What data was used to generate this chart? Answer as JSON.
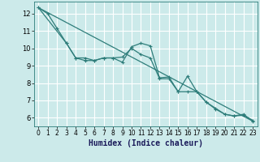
{
  "xlabel": "Humidex (Indice chaleur)",
  "background_color": "#cceaea",
  "grid_color": "#ffffff",
  "line_color": "#2e7d7a",
  "xlim": [
    -0.5,
    23.5
  ],
  "ylim": [
    5.5,
    12.7
  ],
  "yticks": [
    6,
    7,
    8,
    9,
    10,
    11,
    12
  ],
  "xticks": [
    0,
    1,
    2,
    3,
    4,
    5,
    6,
    7,
    8,
    9,
    10,
    11,
    12,
    13,
    14,
    15,
    16,
    17,
    18,
    19,
    20,
    21,
    22,
    23
  ],
  "line1_x": [
    0,
    1,
    2,
    3,
    4,
    5,
    6,
    7,
    8,
    9,
    10,
    11,
    12,
    13,
    14,
    15,
    16,
    17,
    18,
    19,
    20,
    21,
    22,
    23
  ],
  "line1_y": [
    12.35,
    12.0,
    11.15,
    10.3,
    9.45,
    9.3,
    9.3,
    9.45,
    9.45,
    9.2,
    10.1,
    10.3,
    10.15,
    8.3,
    8.35,
    7.5,
    8.4,
    7.5,
    6.9,
    6.5,
    6.2,
    6.1,
    6.2,
    5.8
  ],
  "line2_x": [
    0,
    3,
    4,
    5,
    6,
    7,
    8,
    9,
    10,
    11,
    12,
    13,
    14,
    15,
    16,
    17,
    18,
    19,
    20,
    21,
    22,
    23
  ],
  "line2_y": [
    12.35,
    10.3,
    9.45,
    9.45,
    9.3,
    9.45,
    9.45,
    9.5,
    10.0,
    9.65,
    9.45,
    8.25,
    8.25,
    7.5,
    7.5,
    7.5,
    6.9,
    6.55,
    6.2,
    6.1,
    6.15,
    5.85
  ],
  "line3_x": [
    0,
    23
  ],
  "line3_y": [
    12.35,
    5.8
  ],
  "xlabel_fontsize": 7,
  "tick_fontsize": 5.5
}
